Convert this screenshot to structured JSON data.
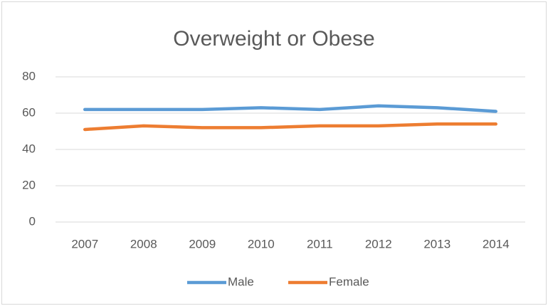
{
  "chart_data": {
    "type": "line",
    "title": "Overweight or Obese",
    "categories": [
      "2007",
      "2008",
      "2009",
      "2010",
      "2011",
      "2012",
      "2013",
      "2014"
    ],
    "series": [
      {
        "name": "Male",
        "color": "#5b9bd5",
        "values": [
          62,
          62,
          62,
          63,
          62,
          64,
          63,
          61
        ]
      },
      {
        "name": "Female",
        "color": "#ed7d31",
        "values": [
          51,
          53,
          52,
          52,
          53,
          53,
          54,
          54
        ]
      }
    ],
    "ylim": [
      0,
      80
    ],
    "yticks": [
      0,
      20,
      40,
      60,
      80
    ],
    "grid": true,
    "legend": "bottom"
  }
}
